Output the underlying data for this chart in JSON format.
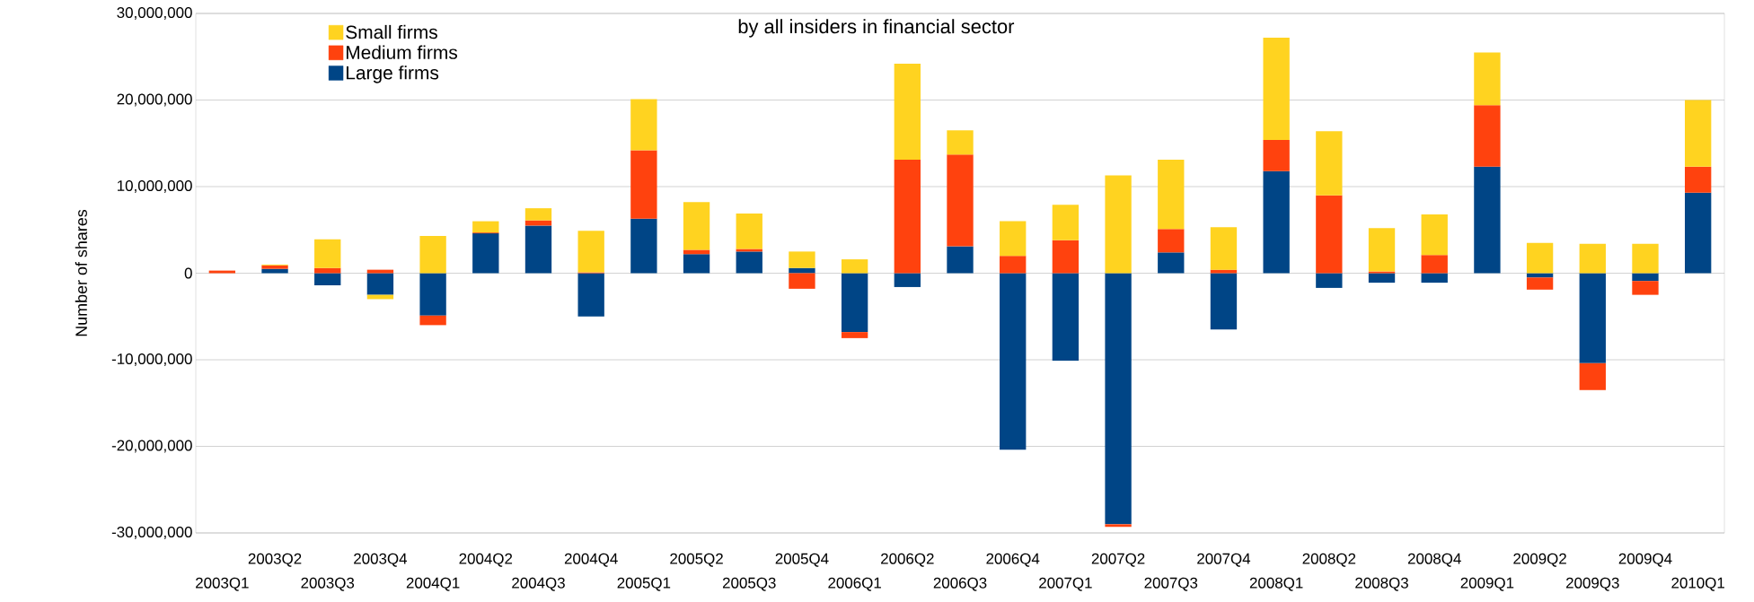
{
  "chart_data": {
    "type": "bar",
    "title": "by all insiders in financial sector",
    "ylabel": "Number of shares",
    "stacked": true,
    "grid": "y",
    "legend": "top left",
    "categories": [
      "2003Q1",
      "2003Q2",
      "2003Q3",
      "2003Q4",
      "2004Q1",
      "2004Q2",
      "2004Q3",
      "2004Q4",
      "2005Q1",
      "2005Q2",
      "2005Q3",
      "2005Q4",
      "2006Q1",
      "2006Q2",
      "2006Q3",
      "2006Q4",
      "2007Q1",
      "2007Q2",
      "2007Q3",
      "2007Q4",
      "2008Q1",
      "2008Q2",
      "2008Q3",
      "2008Q4",
      "2009Q1",
      "2009Q2",
      "2009Q3",
      "2009Q4",
      "2010Q1"
    ],
    "ylim": [
      -30000000,
      30000000
    ],
    "yticks": [
      {
        "value": -30000000,
        "label": "-30,000,000"
      },
      {
        "value": -20000000,
        "label": "-20,000,000"
      },
      {
        "value": -10000000,
        "label": "-10,000,000"
      },
      0,
      {
        "value": 10000000,
        "label": "10,000,000"
      },
      {
        "value": 20000000,
        "label": "20,000,000"
      },
      {
        "value": 30000000,
        "label": "30,000,000"
      }
    ],
    "series": [
      {
        "name": "Large firms",
        "color": "#004586",
        "values": [
          0,
          500000,
          -1400000,
          -2500000,
          -4900000,
          4600000,
          5500000,
          -5000000,
          6300000,
          2200000,
          2500000,
          600000,
          -6800000,
          -1600000,
          3100000,
          -20400000,
          -10100000,
          -29000000,
          2400000,
          -6500000,
          11800000,
          -1700000,
          -1100000,
          -1100000,
          12300000,
          -500000,
          -10400000,
          -900000,
          9300000
        ]
      },
      {
        "name": "Medium firms",
        "color": "#ff420e",
        "values": [
          300000,
          400000,
          600000,
          400000,
          -1100000,
          100000,
          600000,
          100000,
          7900000,
          500000,
          300000,
          -1800000,
          -700000,
          13100000,
          10600000,
          2000000,
          3800000,
          -300000,
          2700000,
          400000,
          3600000,
          9000000,
          200000,
          2100000,
          7100000,
          -1400000,
          -3100000,
          -1600000,
          3000000
        ]
      },
      {
        "name": "Small firms",
        "color": "#ffd320",
        "values": [
          0,
          100000,
          3300000,
          -500000,
          4300000,
          1300000,
          1400000,
          4800000,
          5900000,
          5500000,
          4100000,
          1900000,
          1600000,
          11100000,
          2800000,
          4000000,
          4100000,
          11300000,
          8000000,
          4900000,
          11800000,
          7400000,
          5000000,
          4700000,
          6100000,
          3500000,
          3400000,
          3400000,
          7700000
        ]
      }
    ]
  }
}
